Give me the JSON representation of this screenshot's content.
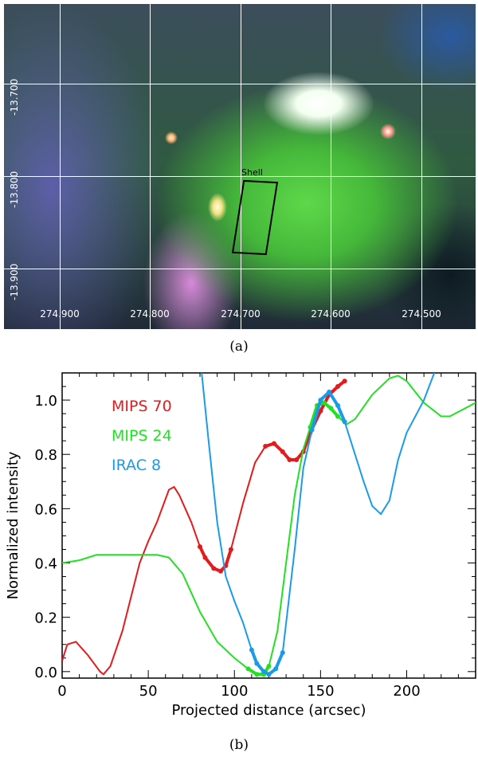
{
  "panel_a": {
    "caption": "(a)",
    "ra_labels": [
      "274.900",
      "274.800",
      "274.700",
      "274.600",
      "274.500"
    ],
    "dec_labels": [
      "-13.700",
      "-13.800",
      "-13.900"
    ],
    "region_label": "Shell"
  },
  "panel_b": {
    "caption": "(b)"
  },
  "chart_data": {
    "type": "line",
    "xlabel": "Projected distance (arcsec)",
    "ylabel": "Normalized intensity",
    "xlim": [
      0,
      240
    ],
    "ylim": [
      -0.024,
      1.1
    ],
    "xticks": [
      0,
      50,
      100,
      150,
      200
    ],
    "xtick_labels": [
      "0",
      "50",
      "100",
      "150",
      "200"
    ],
    "yticks": [
      0.0,
      0.2,
      0.4,
      0.6,
      0.8,
      1.0
    ],
    "ytick_labels": [
      "0.0",
      "0.2",
      "0.4",
      "0.6",
      "0.8",
      "1.0"
    ],
    "legend_placement": "top-left",
    "series": [
      {
        "name": "MIPS 70",
        "color": "#e41a1c",
        "x": [
          0,
          3,
          8,
          15,
          22,
          24,
          28,
          35,
          45,
          50,
          55,
          62,
          65,
          68,
          75,
          80,
          83,
          88,
          92,
          95,
          98,
          105,
          112,
          118,
          123,
          128,
          132,
          136,
          140,
          144,
          150,
          155,
          160,
          164
        ],
        "y": [
          0.04,
          0.1,
          0.11,
          0.06,
          0.0,
          -0.01,
          0.02,
          0.15,
          0.4,
          0.48,
          0.55,
          0.67,
          0.68,
          0.65,
          0.55,
          0.46,
          0.42,
          0.38,
          0.37,
          0.39,
          0.45,
          0.62,
          0.77,
          0.83,
          0.84,
          0.81,
          0.78,
          0.78,
          0.81,
          0.88,
          0.96,
          1.02,
          1.05,
          1.07
        ],
        "highlight_ranges": [
          [
            80,
            98
          ],
          [
            118,
            164
          ]
        ]
      },
      {
        "name": "MIPS 24",
        "color": "#22e022",
        "x": [
          0,
          10,
          20,
          30,
          40,
          55,
          62,
          70,
          80,
          90,
          100,
          108,
          113,
          117,
          120,
          125,
          130,
          135,
          140,
          144,
          148,
          152,
          156,
          160,
          165,
          170,
          180,
          190,
          195,
          200,
          210,
          220,
          225,
          240
        ],
        "y": [
          0.4,
          0.41,
          0.43,
          0.43,
          0.43,
          0.43,
          0.42,
          0.36,
          0.22,
          0.11,
          0.05,
          0.01,
          -0.01,
          -0.01,
          0.02,
          0.15,
          0.4,
          0.65,
          0.82,
          0.9,
          0.98,
          0.99,
          0.97,
          0.94,
          0.91,
          0.93,
          1.02,
          1.08,
          1.09,
          1.07,
          0.99,
          0.94,
          0.94,
          0.99
        ],
        "highlight_ranges": [
          [
            108,
            124
          ],
          [
            143,
            160
          ]
        ]
      },
      {
        "name": "IRAC 8",
        "color": "#1a9be8",
        "x": [
          81,
          85,
          90,
          95,
          100,
          105,
          110,
          113,
          117,
          120,
          124,
          128,
          135,
          140,
          145,
          150,
          155,
          160,
          164,
          170,
          175,
          180,
          185,
          190,
          195,
          200,
          210,
          216
        ],
        "y": [
          1.1,
          0.85,
          0.55,
          0.35,
          0.26,
          0.18,
          0.08,
          0.03,
          0.0,
          -0.01,
          0.01,
          0.07,
          0.45,
          0.75,
          0.89,
          1.0,
          1.03,
          0.98,
          0.92,
          0.8,
          0.7,
          0.61,
          0.58,
          0.63,
          0.78,
          0.88,
          1.0,
          1.1
        ],
        "highlight_ranges": [
          [
            110,
            129
          ],
          [
            145,
            164
          ]
        ]
      }
    ]
  }
}
